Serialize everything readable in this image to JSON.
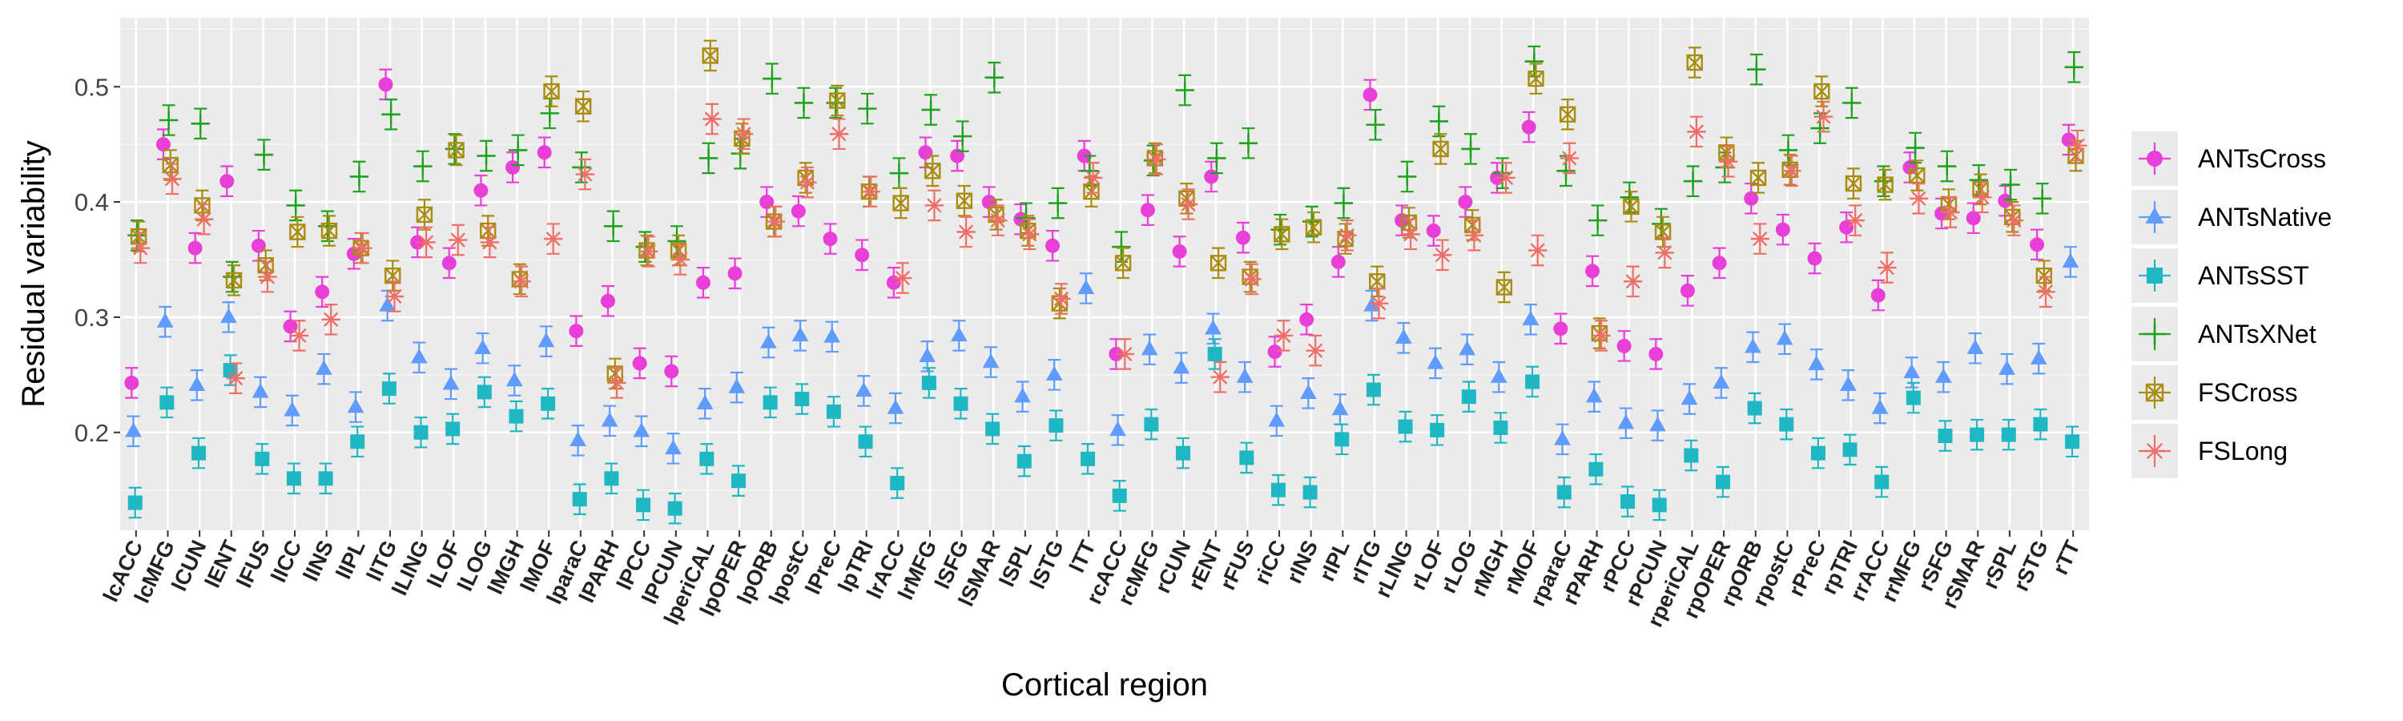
{
  "chart_data": {
    "type": "scatter",
    "xlabel": "Cortical region",
    "ylabel": "Residual variability",
    "ylim": [
      0.115,
      0.56
    ],
    "yticks": [
      0.2,
      0.3,
      0.4,
      0.5
    ],
    "grid": true,
    "legend_position": "right",
    "categories": [
      "lcACC",
      "lcMFG",
      "lCUN",
      "lENT",
      "lFUS",
      "lICC",
      "lINS",
      "lIPL",
      "lITG",
      "lLING",
      "lLOF",
      "lLOG",
      "lMGH",
      "lMOF",
      "lparaC",
      "lPARH",
      "lPCC",
      "lPCUN",
      "lperiCAL",
      "lpOPER",
      "lpORB",
      "lpostC",
      "lPreC",
      "lpTRI",
      "lrACC",
      "lrMFG",
      "lSFG",
      "lSMAR",
      "lSPL",
      "lSTG",
      "lTT",
      "rcACC",
      "rcMFG",
      "rCUN",
      "rENT",
      "rFUS",
      "riCC",
      "rINS",
      "rIPL",
      "rITG",
      "rLING",
      "rLOF",
      "rLOG",
      "rMGH",
      "rMOF",
      "rparaC",
      "rPARH",
      "rPCC",
      "rPCUN",
      "rperiCAL",
      "rpOPER",
      "rpORB",
      "rpostC",
      "rPreC",
      "rpTRI",
      "rrACC",
      "rrMFG",
      "rSFG",
      "rSMAR",
      "rSPL",
      "rSTG",
      "rTT"
    ],
    "series": [
      {
        "name": "ANTsCross",
        "color": "#E83FD8",
        "marker": "circle",
        "values": [
          0.243,
          0.45,
          0.36,
          0.418,
          0.362,
          0.292,
          0.322,
          0.355,
          0.502,
          0.365,
          0.347,
          0.41,
          0.43,
          0.443,
          0.288,
          0.314,
          0.26,
          0.253,
          0.33,
          0.338,
          0.4,
          0.392,
          0.368,
          0.354,
          0.33,
          0.443,
          0.44,
          0.4,
          0.385,
          0.362,
          0.44,
          0.268,
          0.393,
          0.357,
          0.422,
          0.369,
          0.27,
          0.298,
          0.348,
          0.493,
          0.384,
          0.375,
          0.4,
          0.421,
          0.465,
          0.29,
          0.34,
          0.275,
          0.268,
          0.323,
          0.347,
          0.403,
          0.376,
          0.351,
          0.378,
          0.319,
          0.43,
          0.39,
          0.386,
          0.401,
          0.363,
          0.454
        ]
      },
      {
        "name": "ANTsNative",
        "color": "#609CFF",
        "marker": "triangle",
        "values": [
          0.201,
          0.296,
          0.241,
          0.3,
          0.235,
          0.219,
          0.255,
          0.222,
          0.31,
          0.265,
          0.242,
          0.273,
          0.245,
          0.279,
          0.193,
          0.21,
          0.201,
          0.186,
          0.225,
          0.239,
          0.278,
          0.284,
          0.283,
          0.236,
          0.221,
          0.266,
          0.284,
          0.261,
          0.231,
          0.25,
          0.325,
          0.202,
          0.272,
          0.256,
          0.29,
          0.248,
          0.21,
          0.234,
          0.22,
          0.31,
          0.282,
          0.26,
          0.272,
          0.248,
          0.298,
          0.194,
          0.231,
          0.208,
          0.206,
          0.229,
          0.243,
          0.274,
          0.281,
          0.259,
          0.241,
          0.221,
          0.252,
          0.248,
          0.273,
          0.255,
          0.264,
          0.348
        ]
      },
      {
        "name": "ANTsSST",
        "color": "#1EB7C2",
        "marker": "square",
        "values": [
          0.139,
          0.226,
          0.182,
          0.254,
          0.177,
          0.16,
          0.16,
          0.192,
          0.238,
          0.2,
          0.203,
          0.235,
          0.214,
          0.225,
          0.142,
          0.16,
          0.137,
          0.134,
          0.177,
          0.158,
          0.226,
          0.229,
          0.218,
          0.192,
          0.156,
          0.243,
          0.225,
          0.203,
          0.175,
          0.206,
          0.177,
          0.145,
          0.207,
          0.182,
          0.268,
          0.178,
          0.15,
          0.148,
          0.194,
          0.237,
          0.205,
          0.202,
          0.231,
          0.204,
          0.244,
          0.148,
          0.168,
          0.14,
          0.137,
          0.18,
          0.157,
          0.221,
          0.207,
          0.182,
          0.185,
          0.157,
          0.23,
          0.197,
          0.198,
          0.198,
          0.207,
          0.192
        ]
      },
      {
        "name": "ANTsXNet",
        "color": "#1EA31E",
        "marker": "plus",
        "values": [
          0.371,
          0.471,
          0.468,
          0.335,
          0.441,
          0.397,
          0.379,
          0.422,
          0.476,
          0.431,
          0.446,
          0.44,
          0.445,
          0.477,
          0.43,
          0.379,
          0.361,
          0.366,
          0.438,
          0.442,
          0.507,
          0.486,
          0.486,
          0.481,
          0.425,
          0.48,
          0.457,
          0.508,
          0.386,
          0.399,
          0.427,
          0.361,
          0.436,
          0.497,
          0.438,
          0.451,
          0.376,
          0.383,
          0.399,
          0.467,
          0.422,
          0.47,
          0.446,
          0.425,
          0.522,
          0.427,
          0.384,
          0.404,
          0.381,
          0.418,
          0.43,
          0.515,
          0.445,
          0.464,
          0.486,
          0.418,
          0.447,
          0.431,
          0.419,
          0.415,
          0.403,
          0.517
        ]
      },
      {
        "name": "FSCross",
        "color": "#A98D0E",
        "marker": "square-x",
        "values": [
          0.37,
          0.432,
          0.397,
          0.332,
          0.345,
          0.374,
          0.375,
          0.36,
          0.336,
          0.389,
          0.445,
          0.375,
          0.333,
          0.496,
          0.483,
          0.251,
          0.358,
          0.358,
          0.527,
          0.455,
          0.383,
          0.421,
          0.488,
          0.409,
          0.399,
          0.427,
          0.401,
          0.389,
          0.375,
          0.312,
          0.409,
          0.347,
          0.438,
          0.403,
          0.347,
          0.335,
          0.372,
          0.378,
          0.368,
          0.331,
          0.382,
          0.446,
          0.38,
          0.326,
          0.507,
          0.476,
          0.286,
          0.396,
          0.374,
          0.521,
          0.443,
          0.421,
          0.428,
          0.496,
          0.416,
          0.415,
          0.423,
          0.398,
          0.411,
          0.387,
          0.336,
          0.44
        ]
      },
      {
        "name": "FSLong",
        "color": "#F06E68",
        "marker": "asterisk",
        "values": [
          0.36,
          0.42,
          0.385,
          0.247,
          0.335,
          0.284,
          0.298,
          0.36,
          0.318,
          0.365,
          0.367,
          0.365,
          0.331,
          0.368,
          0.424,
          0.243,
          0.357,
          0.35,
          0.472,
          0.459,
          0.383,
          0.417,
          0.459,
          0.409,
          0.334,
          0.397,
          0.374,
          0.384,
          0.372,
          0.316,
          0.421,
          0.268,
          0.437,
          0.398,
          0.248,
          0.333,
          0.284,
          0.271,
          0.371,
          0.312,
          0.372,
          0.354,
          0.371,
          0.421,
          0.358,
          0.438,
          0.284,
          0.331,
          0.356,
          0.461,
          0.435,
          0.368,
          0.427,
          0.474,
          0.384,
          0.343,
          0.403,
          0.391,
          0.404,
          0.384,
          0.322,
          0.449
        ]
      }
    ]
  }
}
